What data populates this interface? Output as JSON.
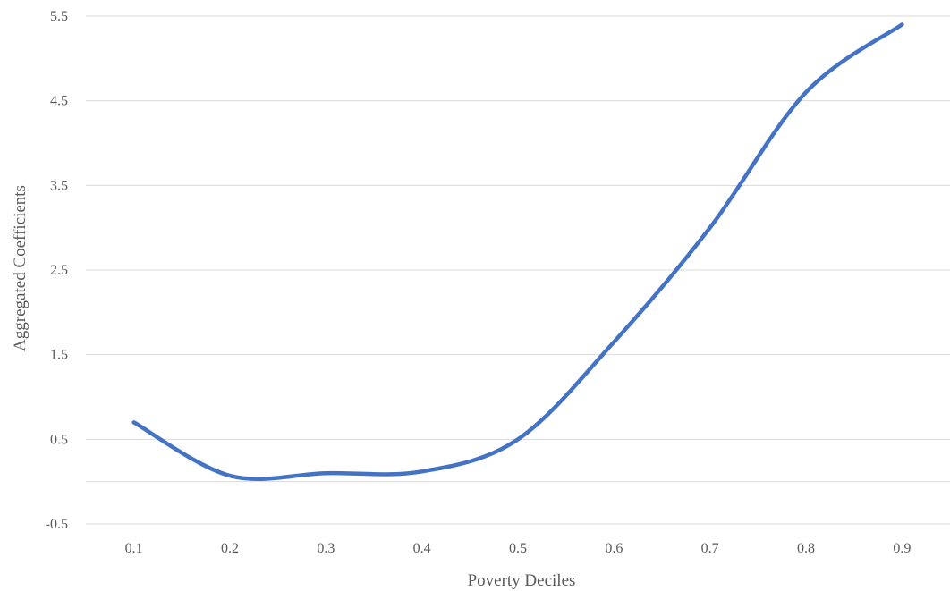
{
  "chart_data": {
    "type": "line",
    "title": "",
    "xlabel": "Poverty Deciles",
    "ylabel": "Aggregated Coefficients",
    "categories": [
      "0.1",
      "0.2",
      "0.3",
      "0.4",
      "0.5",
      "0.6",
      "0.7",
      "0.8",
      "0.9"
    ],
    "ylim": [
      -0.5,
      5.5
    ],
    "yticks": [
      "-0.5",
      "0.5",
      "1.5",
      "2.5",
      "3.5",
      "4.5",
      "5.5"
    ],
    "grid": true,
    "legend": "none",
    "smooth": true,
    "series": [
      {
        "values": [
          0.7,
          0.07,
          0.1,
          0.12,
          0.5,
          1.65,
          3.0,
          4.6,
          5.4
        ],
        "color": "#4472c4"
      }
    ]
  }
}
